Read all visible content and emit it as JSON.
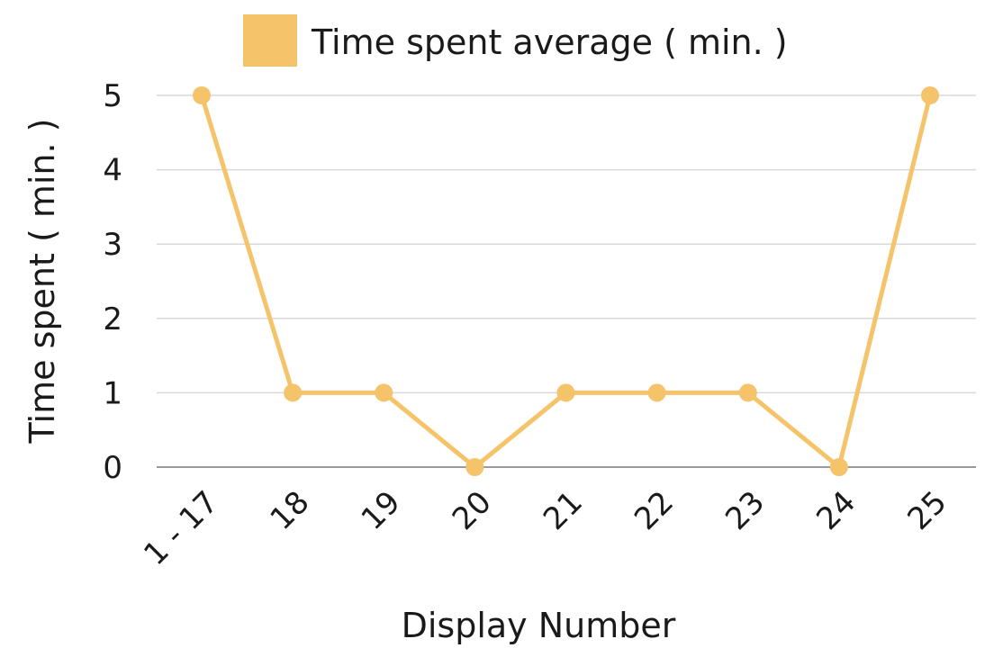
{
  "chart_data": {
    "type": "line",
    "categories": [
      "1 - 17",
      "18",
      "19",
      "20",
      "21",
      "22",
      "23",
      "24",
      "25"
    ],
    "series": [
      {
        "name": "Time spent average ( min. )",
        "values": [
          5,
          1,
          1,
          0,
          1,
          1,
          1,
          0,
          5
        ],
        "color": "#F4C36A"
      }
    ],
    "xlabel": "Display Number",
    "ylabel": "Time spent ( min. )",
    "ylim": [
      0,
      5
    ],
    "yticks": [
      "0",
      "1",
      "2",
      "3",
      "4",
      "5"
    ],
    "grid": true,
    "legend_position": "top"
  }
}
